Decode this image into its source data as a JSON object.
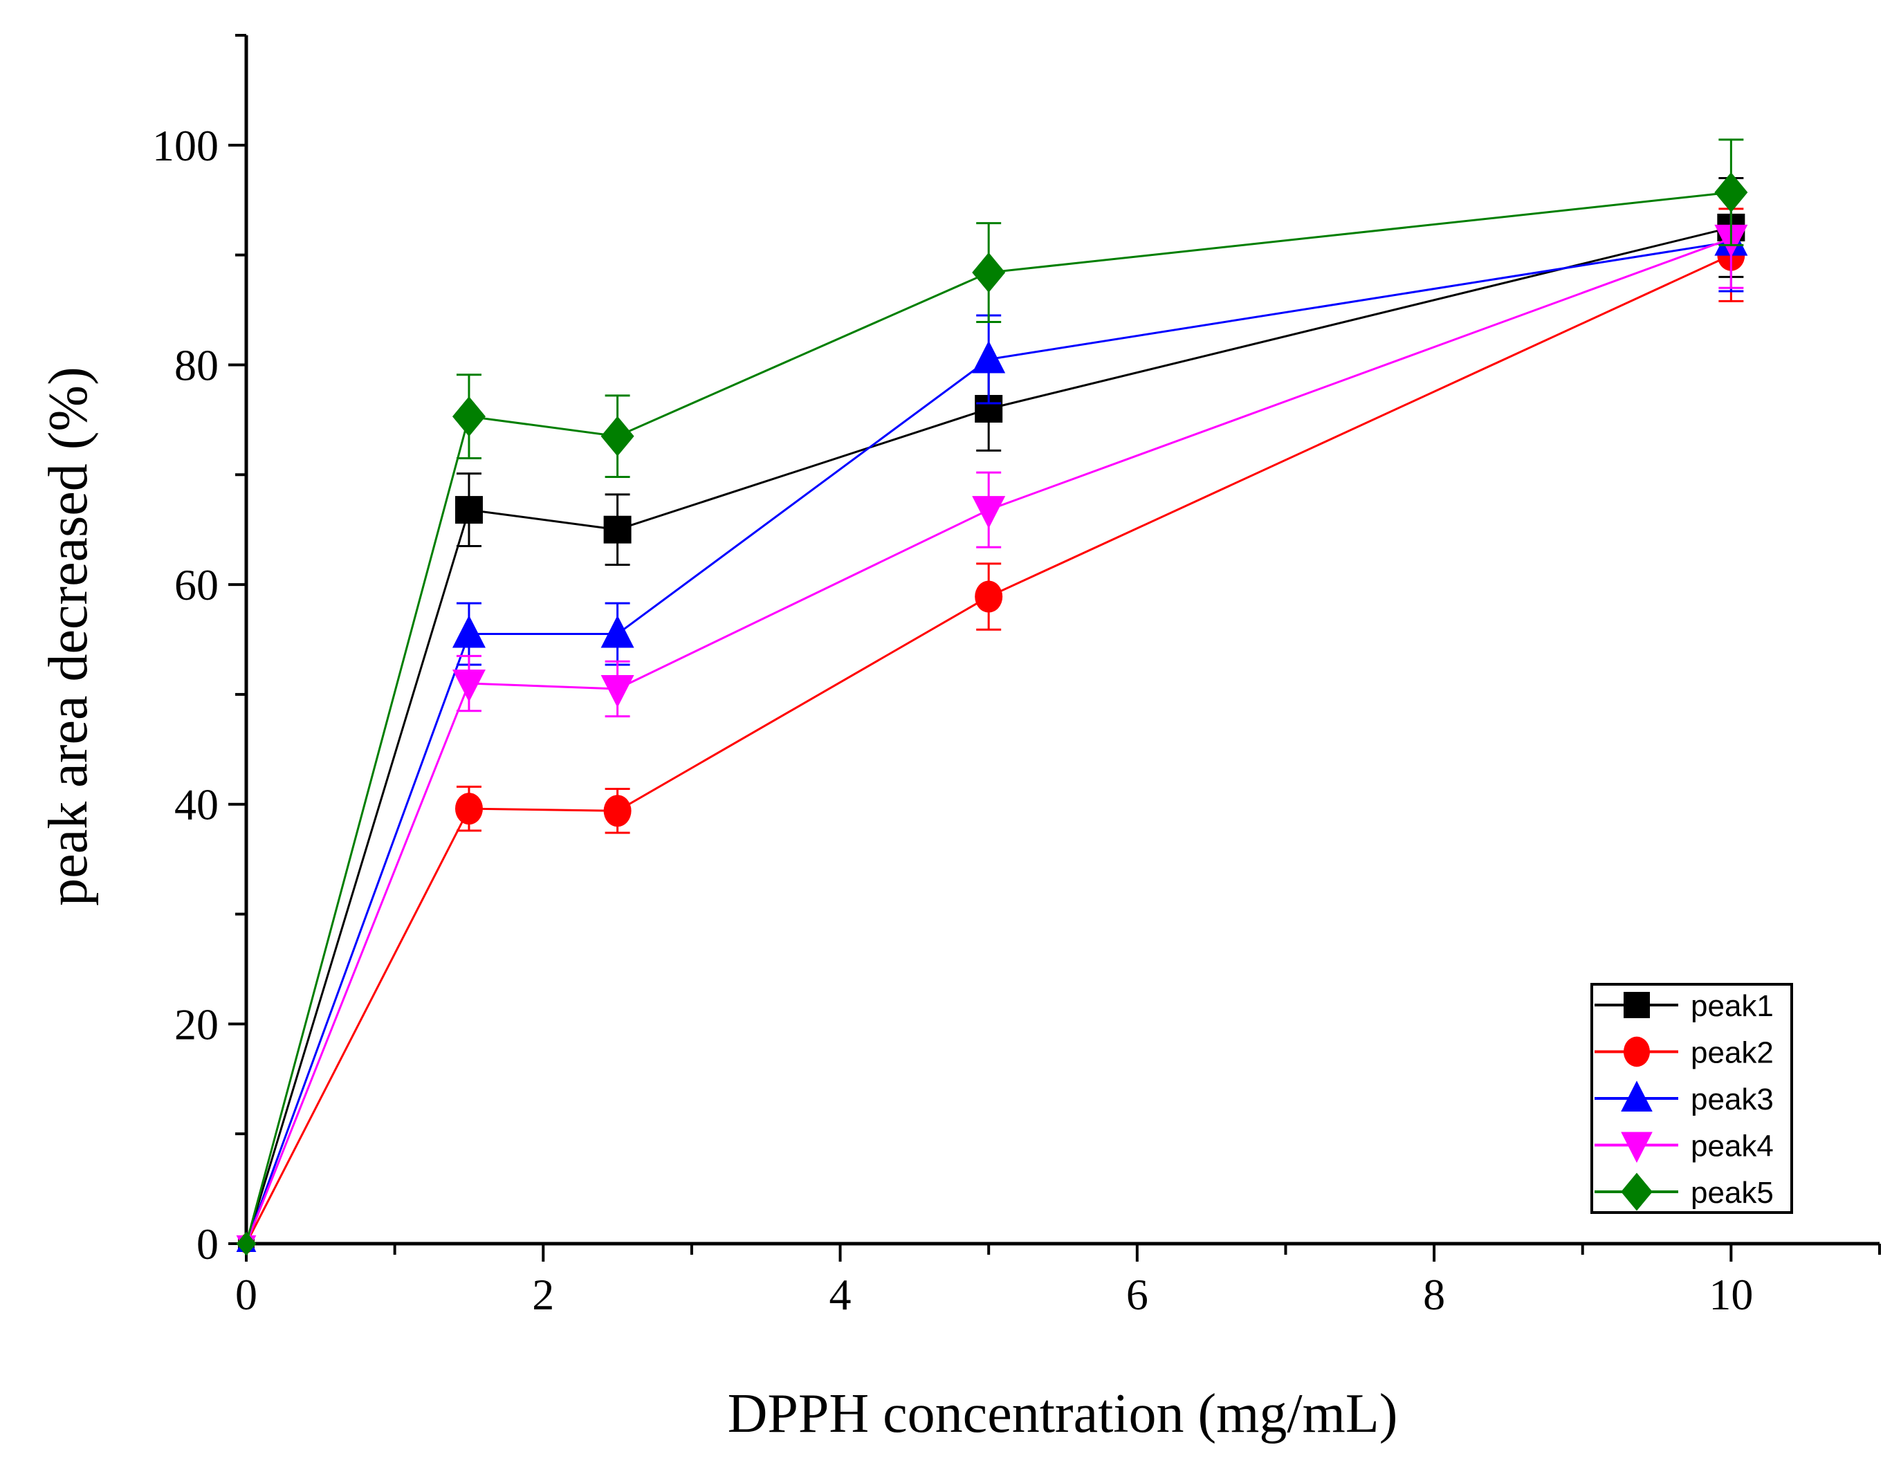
{
  "chart_data": {
    "type": "line",
    "title": "",
    "xlabel": "DPPH concentration (mg/mL)",
    "ylabel": "peak area decreased (%)",
    "xlim": [
      0,
      11
    ],
    "ylim": [
      0,
      110
    ],
    "xticks": [
      0,
      2,
      4,
      6,
      8,
      10
    ],
    "yticks": [
      0,
      20,
      40,
      60,
      80,
      100
    ],
    "xtick_labels": [
      "0",
      "2",
      "4",
      "6",
      "8",
      "10"
    ],
    "ytick_labels": [
      "0",
      "20",
      "40",
      "60",
      "80",
      "100"
    ],
    "grid": false,
    "legend_position": "bottom-right",
    "x": [
      0,
      1.5,
      2.5,
      5,
      10
    ],
    "series": [
      {
        "name": "peak1",
        "color": "#000000",
        "marker": "square",
        "values": [
          0,
          66.8,
          65.0,
          76.0,
          92.5
        ],
        "errors": [
          0,
          3.3,
          3.2,
          3.8,
          4.5
        ]
      },
      {
        "name": "peak2",
        "color": "#ff0000",
        "marker": "circle",
        "values": [
          0,
          39.6,
          39.4,
          58.9,
          90.0
        ],
        "errors": [
          0,
          2.0,
          2.0,
          3.0,
          4.2
        ]
      },
      {
        "name": "peak3",
        "color": "#0000ff",
        "marker": "triangle-up",
        "values": [
          0,
          55.5,
          55.5,
          80.5,
          91.2
        ],
        "errors": [
          0,
          2.8,
          2.8,
          4.0,
          4.5
        ]
      },
      {
        "name": "peak4",
        "color": "#ff00ff",
        "marker": "triangle-down",
        "values": [
          0,
          51.0,
          50.5,
          66.8,
          91.5
        ],
        "errors": [
          0,
          2.5,
          2.5,
          3.4,
          4.5
        ]
      },
      {
        "name": "peak5",
        "color": "#007f00",
        "marker": "diamond",
        "values": [
          0,
          75.3,
          73.5,
          88.4,
          95.7
        ],
        "errors": [
          0,
          3.8,
          3.7,
          4.5,
          4.8
        ]
      }
    ]
  }
}
